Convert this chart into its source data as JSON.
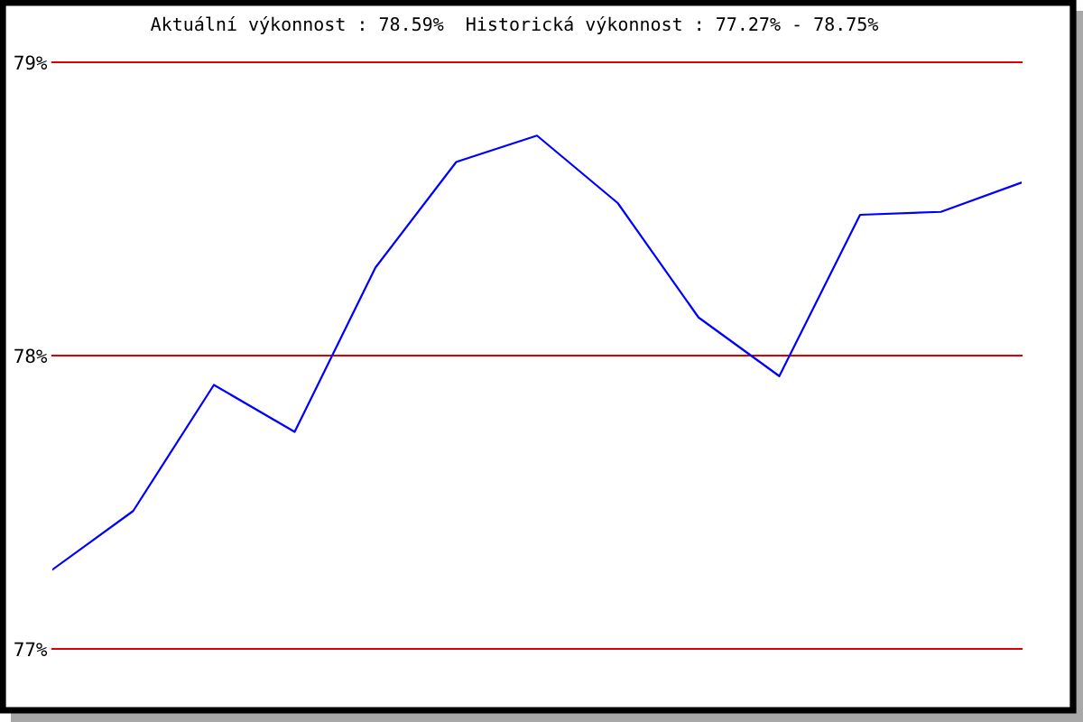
{
  "chart_data": {
    "type": "line",
    "title": "Aktuální výkonnost : 78.59%  Historická výkonnost : 77.27% - 78.75%",
    "categories": [
      null,
      null,
      null,
      null,
      null,
      null,
      null,
      null,
      null,
      null,
      null,
      null,
      null
    ],
    "series": [
      {
        "color": "#0000ff",
        "values": [
          77.27,
          77.47,
          77.9,
          77.74,
          78.3,
          78.66,
          78.75,
          78.52,
          78.13,
          77.93,
          78.48,
          78.49,
          78.59
        ]
      }
    ],
    "ylim": [
      77,
      79
    ],
    "yticks": [
      {
        "value": 77,
        "label": "77%"
      },
      {
        "value": 78,
        "label": "78%"
      },
      {
        "value": 79,
        "label": "79%"
      }
    ],
    "ref_lines": [
      {
        "axis": "y",
        "value": 77,
        "color": "#dd0000"
      },
      {
        "axis": "y",
        "value": 78,
        "color": "#dd0000"
      },
      {
        "axis": "y",
        "value": 79,
        "color": "#dd0000"
      }
    ],
    "tick_labels": "y",
    "marker": "none",
    "line_style": "solid"
  }
}
